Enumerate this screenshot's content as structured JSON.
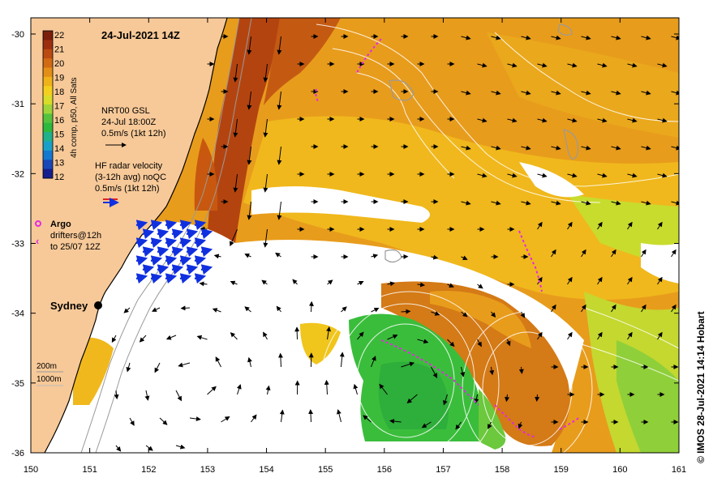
{
  "map": {
    "title": "24-Jul-2021 14Z",
    "x_ticks": [
      "150",
      "151",
      "152",
      "153",
      "154",
      "155",
      "156",
      "157",
      "158",
      "159",
      "160",
      "161"
    ],
    "y_ticks": [
      "-30",
      "-31",
      "-32",
      "-33",
      "-34",
      "-35",
      "-36"
    ],
    "credit": "© IMOS 28-Jul-2021 14:14 Hobart",
    "colorbar": {
      "labels": [
        "22",
        "21",
        "20",
        "19",
        "18",
        "17",
        "16",
        "15",
        "14",
        "13",
        "12"
      ],
      "caption": "4h comp, p50, All Sats",
      "colors": [
        "#7a1f0c",
        "#9c2e10",
        "#bb4a12",
        "#d06a14",
        "#e38f17",
        "#f0b219",
        "#f4d01e",
        "#d8dd2a",
        "#9ed43a",
        "#54c23e",
        "#2db83e",
        "#1fb08c",
        "#1aa0c8",
        "#1478d0",
        "#1848b8",
        "#151e8c"
      ]
    },
    "legend": {
      "gsl_title": "NRT00 GSL",
      "gsl_date": "24-Jul 18:00Z",
      "gsl_scale": "0.5m/s (1kt 12h)",
      "hf_title": "HF radar velocity",
      "hf_sub": "(3-12h avg) noQC",
      "hf_scale": "0.5m/s (1kt 12h)",
      "argo_label": "Argo",
      "drifters_label": "drifters@12h",
      "drifters_sub": "to 25/07 12Z",
      "depth_200": "200m",
      "depth_1000": "1000m"
    },
    "city": "Sydney",
    "colors": {
      "land": "#f7c998",
      "warm": "#e8a21a",
      "hot": "#b4440f",
      "green": "#3bbd3c",
      "argo": "#e22be2",
      "hf": "#1030e0"
    }
  }
}
